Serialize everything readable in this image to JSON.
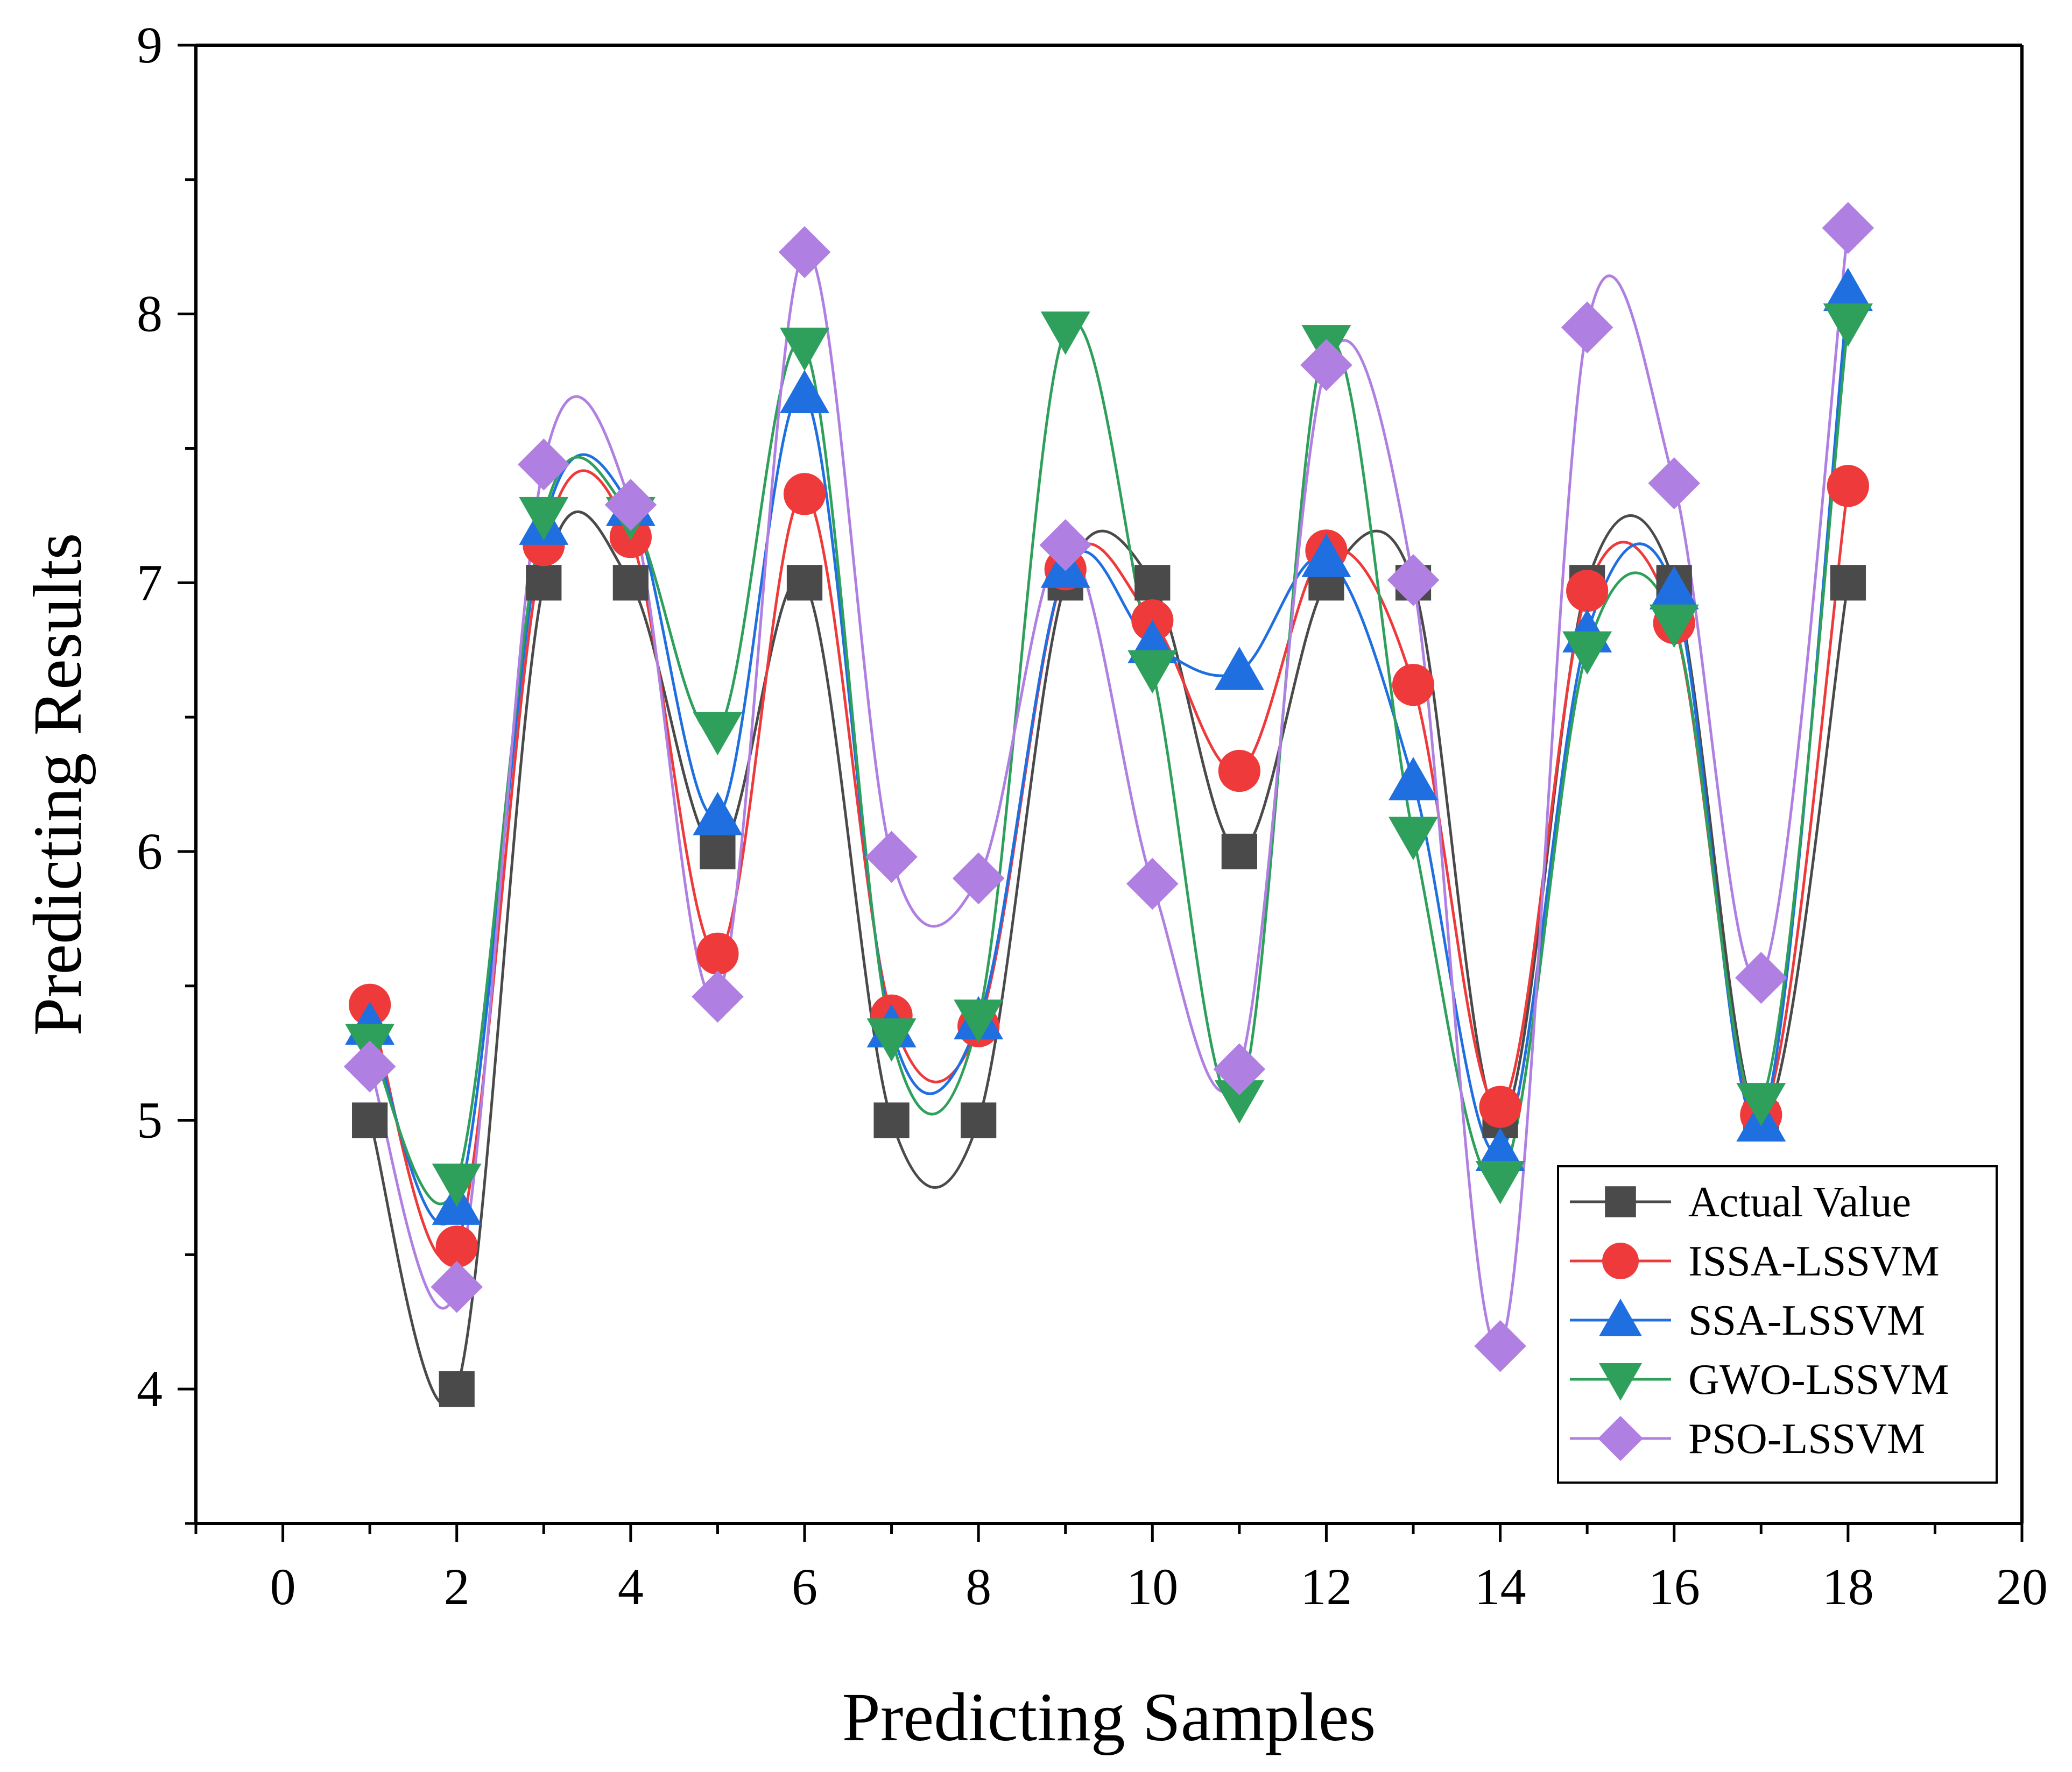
{
  "chart_data": {
    "type": "line",
    "title": "",
    "xlabel": "Predicting Samples",
    "ylabel": "Predicting Results",
    "xlim": [
      -1,
      20
    ],
    "ylim": [
      3.5,
      9
    ],
    "xticks": [
      0,
      2,
      4,
      6,
      8,
      10,
      12,
      14,
      16,
      18,
      20
    ],
    "xtick_labels": [
      "0",
      "2",
      "4",
      "6",
      "8",
      "10",
      "12",
      "14",
      "16",
      "18",
      "20"
    ],
    "yticks": [
      4,
      5,
      6,
      7,
      8,
      9
    ],
    "ytick_labels": [
      "4",
      "5",
      "6",
      "7",
      "8",
      "9"
    ],
    "grid": false,
    "legend_position": "bottom-right",
    "x": [
      1,
      2,
      3,
      4,
      5,
      6,
      7,
      8,
      9,
      10,
      11,
      12,
      13,
      14,
      15,
      16,
      17,
      18
    ],
    "series": [
      {
        "name": "Actual Value",
        "color": "#4a4a4a",
        "marker": "square",
        "values": [
          5,
          4,
          7,
          7,
          6,
          7,
          5,
          5,
          7,
          7,
          6,
          7,
          7,
          5,
          7,
          7,
          5,
          7
        ]
      },
      {
        "name": "ISSA-LSSVM",
        "color": "#ee3a3a",
        "marker": "circle",
        "values": [
          5.43,
          4.53,
          7.14,
          7.17,
          5.62,
          7.33,
          5.39,
          5.35,
          7.05,
          6.86,
          6.3,
          7.12,
          6.62,
          5.05,
          6.97,
          6.85,
          5.02,
          7.36
        ]
      },
      {
        "name": "SSA-LSSVM",
        "color": "#1f6fe0",
        "marker": "triangle-up",
        "values": [
          5.35,
          4.68,
          7.21,
          7.28,
          6.13,
          7.7,
          5.34,
          5.37,
          7.05,
          6.77,
          6.67,
          7.09,
          6.26,
          4.88,
          6.81,
          6.97,
          4.99,
          8.08
        ]
      },
      {
        "name": "GWO-LSSVM",
        "color": "#2ea05c",
        "marker": "triangle-down",
        "values": [
          5.29,
          4.77,
          7.25,
          7.25,
          6.45,
          7.88,
          5.31,
          5.38,
          7.94,
          6.68,
          5.08,
          7.89,
          6.06,
          4.78,
          6.75,
          6.85,
          5.07,
          7.97
        ]
      },
      {
        "name": "PSO-LSSVM",
        "color": "#b07fe2",
        "marker": "diamond",
        "values": [
          5.2,
          4.38,
          7.44,
          7.29,
          5.46,
          8.23,
          5.98,
          5.9,
          7.14,
          5.88,
          5.19,
          7.81,
          7.01,
          4.16,
          7.95,
          7.37,
          5.53,
          8.32
        ]
      }
    ]
  }
}
